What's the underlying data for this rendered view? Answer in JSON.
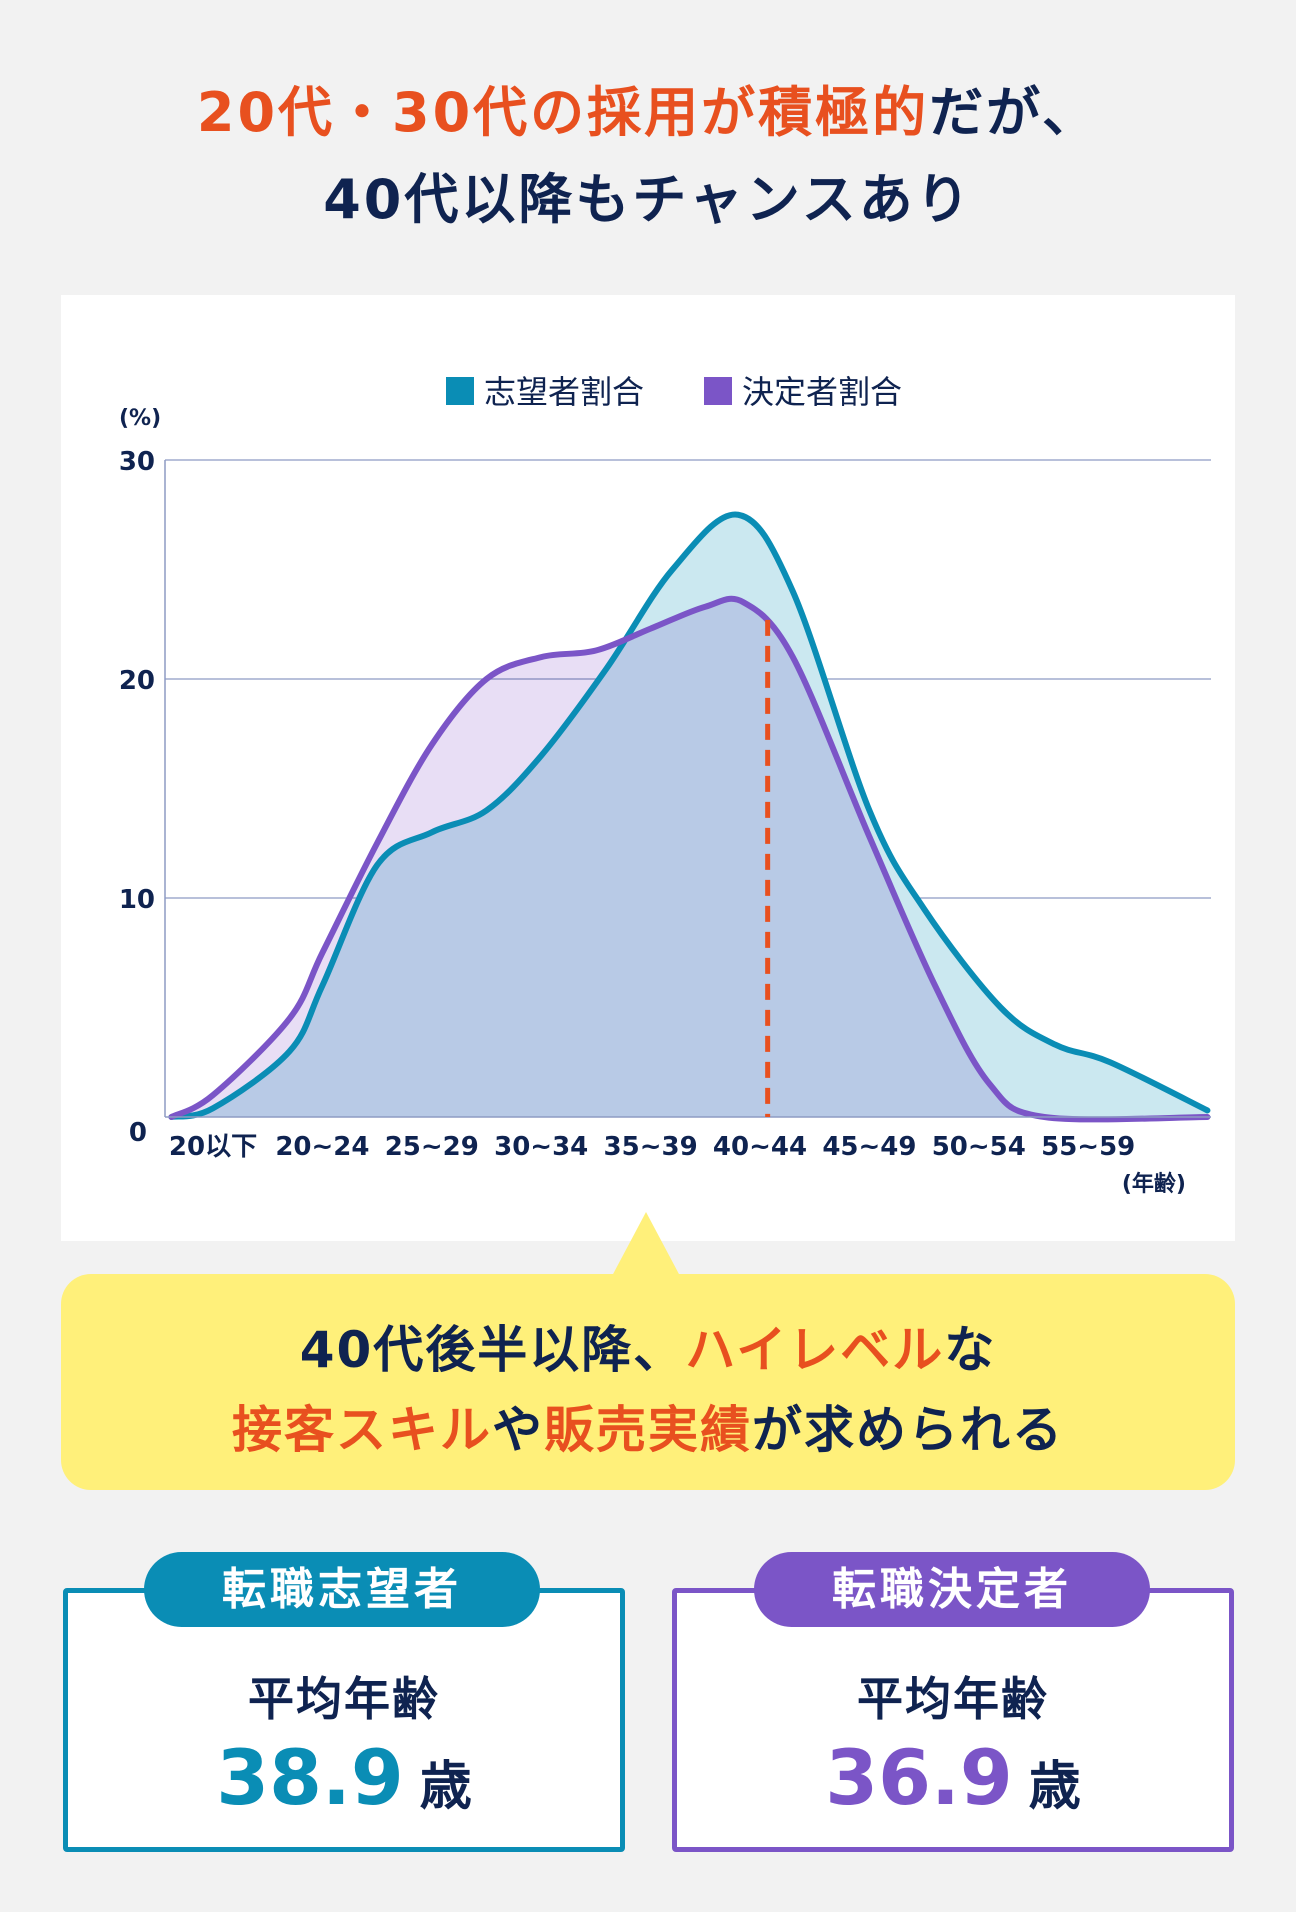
{
  "headline": {
    "line1_orange": "20代・30代の採用が積極的",
    "line1_navy": "だが、",
    "line2": "40代以降もチャンスあり"
  },
  "chart_data": {
    "type": "area",
    "title": "",
    "ylabel": "(%)",
    "xlabel": "(年齢)",
    "ylim": [
      0,
      30
    ],
    "yticks": [
      "0",
      "10",
      "20",
      "30"
    ],
    "ytick_values": [
      0,
      10,
      20,
      30
    ],
    "grid": true,
    "legend_position": "top-center",
    "categories": [
      "20以下",
      "20~24",
      "25~29",
      "30~34",
      "35~39",
      "40~44",
      "45~49",
      "50~54",
      "55~59"
    ],
    "series": [
      {
        "name": "志望者割合",
        "color": "#0a8db5",
        "fill": "#cbe8f0",
        "points": [
          [
            -0.38,
            0
          ],
          [
            0,
            0.4
          ],
          [
            0.7,
            3
          ],
          [
            1,
            6
          ],
          [
            1.5,
            11.5
          ],
          [
            2,
            13
          ],
          [
            2.5,
            14
          ],
          [
            3,
            16.5
          ],
          [
            3.6,
            20.5
          ],
          [
            4.2,
            25
          ],
          [
            4.8,
            27.5
          ],
          [
            5.3,
            24
          ],
          [
            6,
            14
          ],
          [
            6.5,
            9.5
          ],
          [
            7.2,
            5
          ],
          [
            7.7,
            3.3
          ],
          [
            8.2,
            2.5
          ],
          [
            9.09,
            0.3
          ]
        ]
      },
      {
        "name": "決定者割合",
        "color": "#7b55c7",
        "fill": "#e8def5",
        "points": [
          [
            -0.38,
            0
          ],
          [
            0,
            1
          ],
          [
            0.7,
            4.5
          ],
          [
            1,
            7.5
          ],
          [
            1.5,
            12.5
          ],
          [
            2,
            17
          ],
          [
            2.5,
            20
          ],
          [
            3,
            21
          ],
          [
            3.5,
            21.3
          ],
          [
            4,
            22.3
          ],
          [
            4.5,
            23.3
          ],
          [
            4.85,
            23.5
          ],
          [
            5.3,
            21
          ],
          [
            6,
            12.8
          ],
          [
            6.6,
            6
          ],
          [
            7.1,
            1.5
          ],
          [
            7.6,
            0
          ],
          [
            9.09,
            0
          ]
        ]
      }
    ],
    "marker_line": {
      "x": 5.07,
      "y": 22.7,
      "color": "#e8501f",
      "style": "dashed"
    }
  },
  "callout": {
    "line1": [
      {
        "text": "40代後半以降、",
        "hl": false
      },
      {
        "text": "ハイレベル",
        "hl": true
      },
      {
        "text": "な",
        "hl": false
      }
    ],
    "line2": [
      {
        "text": "接客スキル",
        "hl": true
      },
      {
        "text": "や",
        "hl": false
      },
      {
        "text": "販売実績",
        "hl": true
      },
      {
        "text": "が求められる",
        "hl": false
      }
    ]
  },
  "stats": [
    {
      "label": "転職志望者",
      "sub": "平均年齢",
      "value": "38.9",
      "unit": "歳",
      "color": "#0a8db5"
    },
    {
      "label": "転職決定者",
      "sub": "平均年齢",
      "value": "36.9",
      "unit": "歳",
      "color": "#7b55c7"
    }
  ],
  "colors": {
    "orange": "#e8501f",
    "navy": "#0f2350",
    "yellow": "#fff07a",
    "background": "#f2f2f2"
  }
}
